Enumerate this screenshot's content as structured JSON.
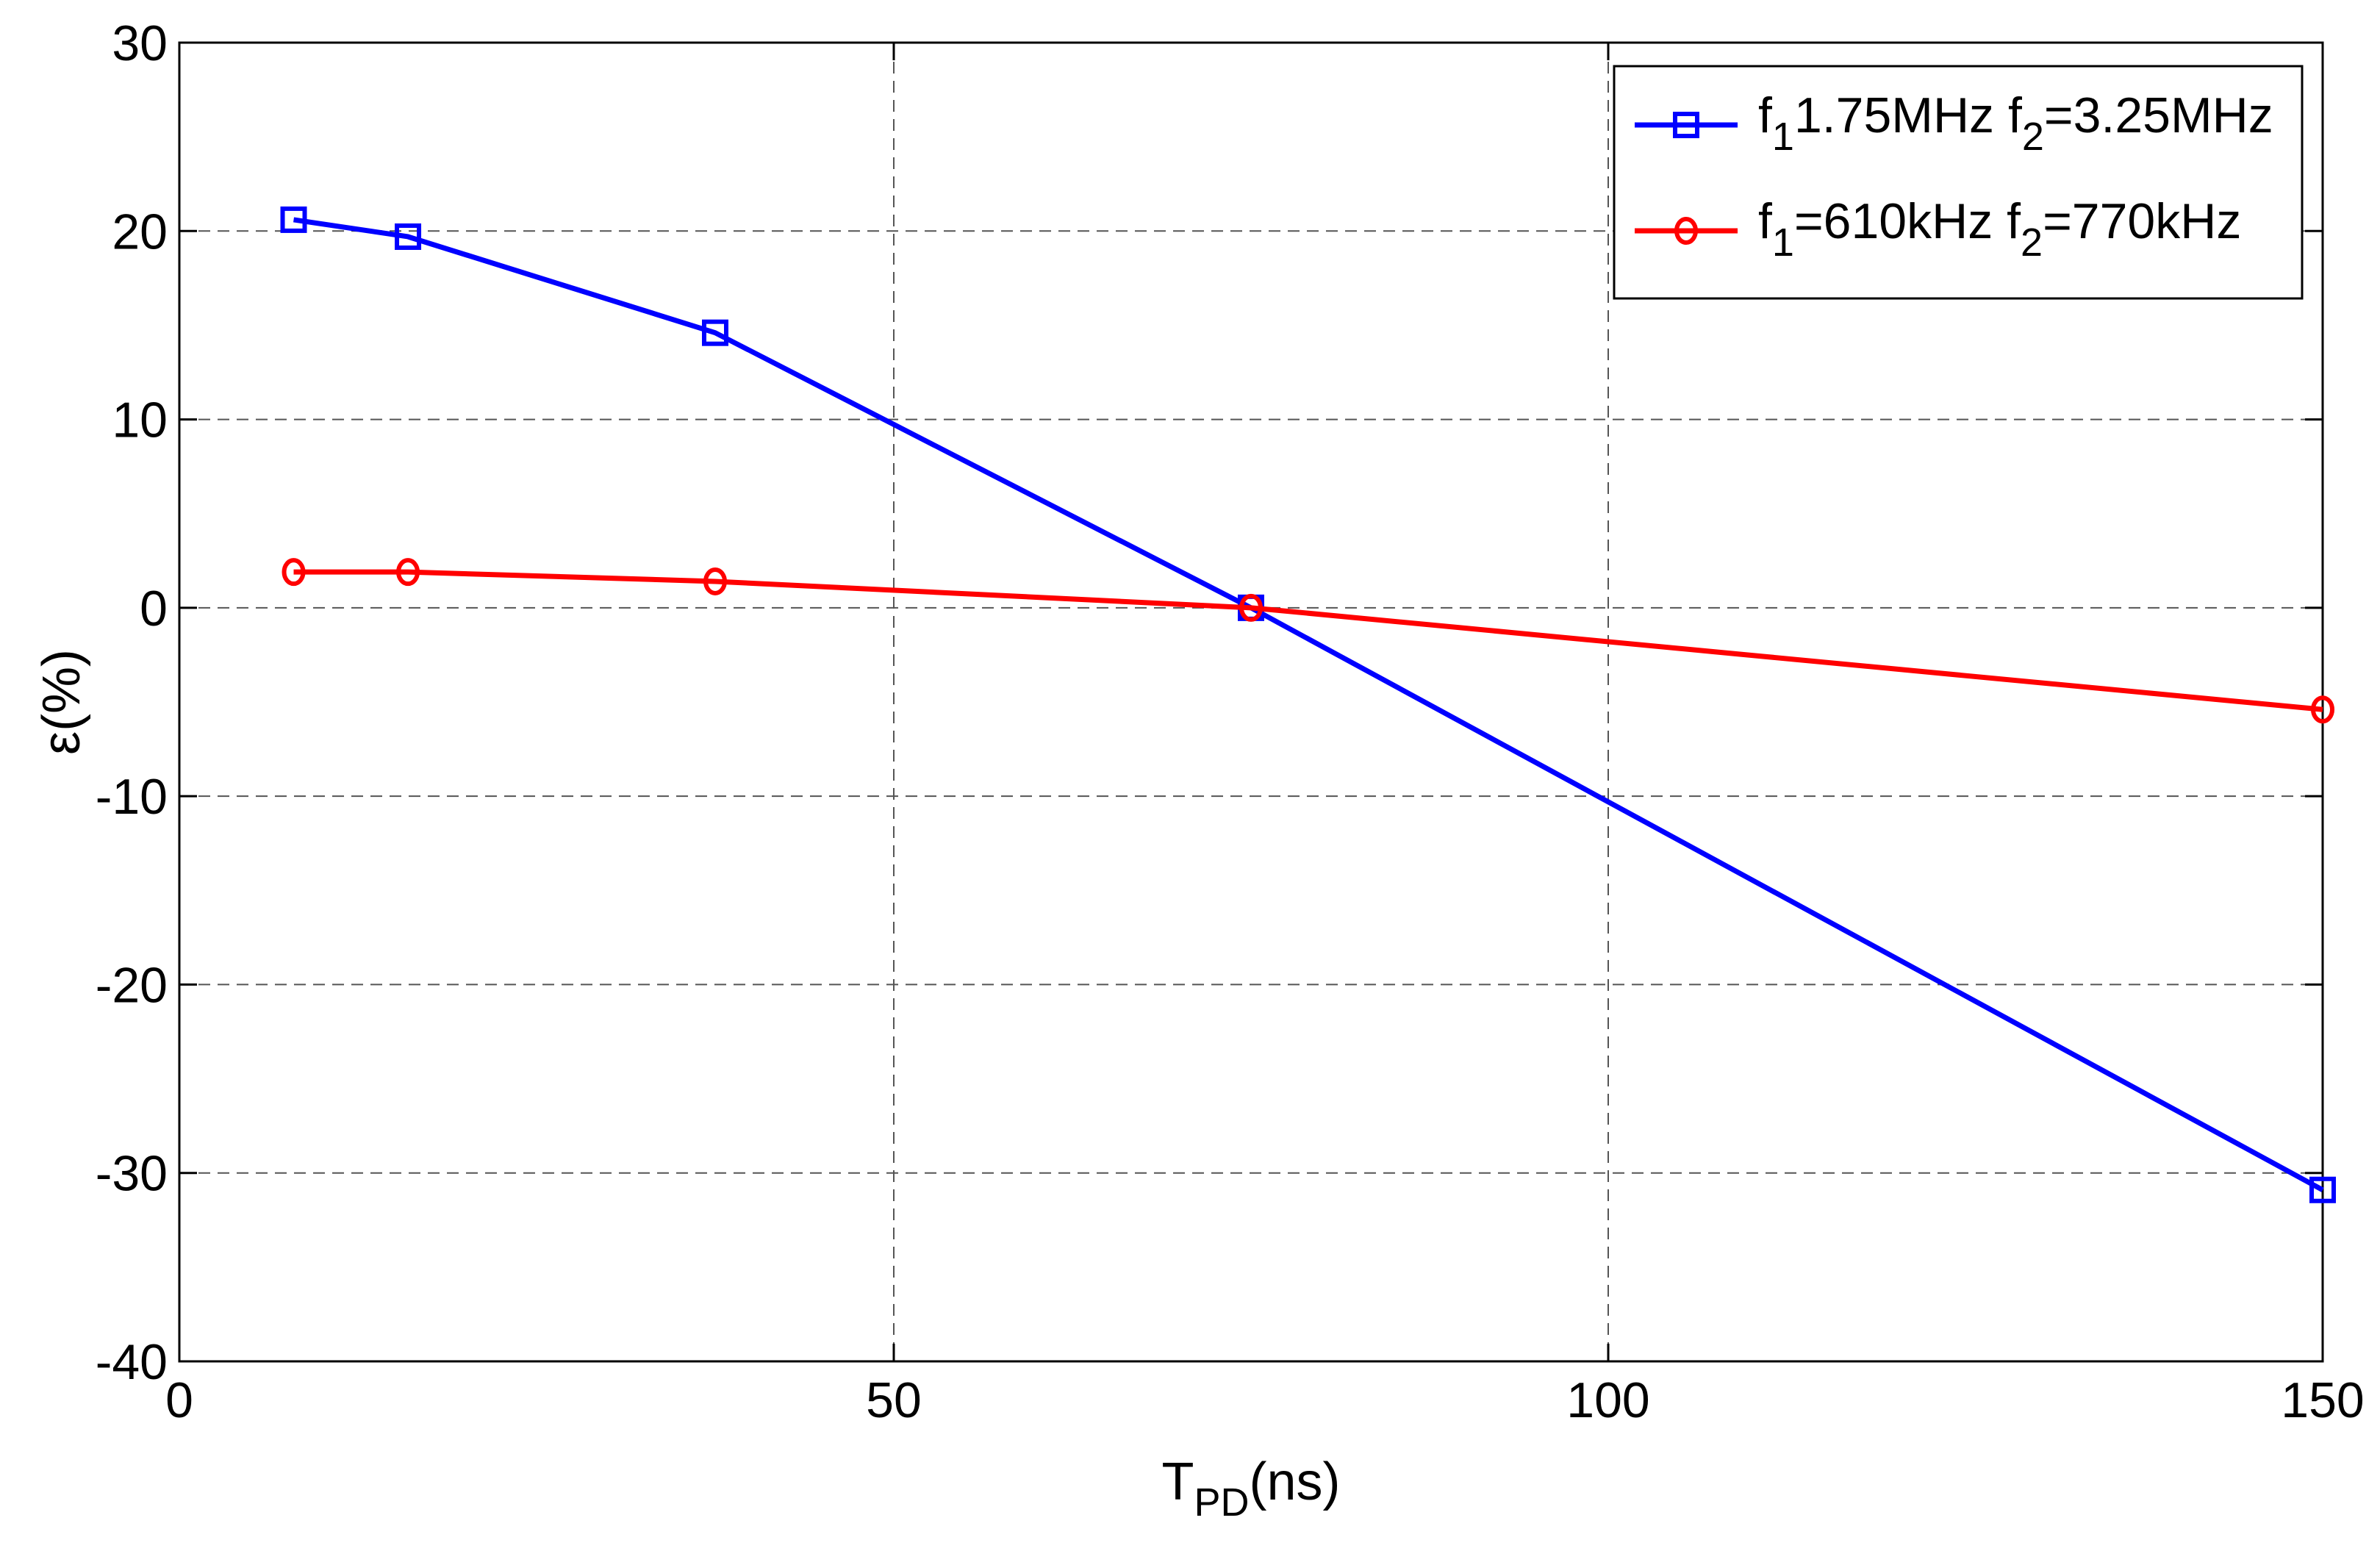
{
  "chart_data": {
    "type": "line",
    "xlabel": {
      "main": "T",
      "sub": "PD",
      "rest": "(ns)"
    },
    "ylabel": "ε(%)",
    "xlim": [
      0,
      150
    ],
    "ylim": [
      -40,
      30
    ],
    "xticks": [
      0,
      50,
      100,
      150
    ],
    "yticks": [
      -40,
      -30,
      -20,
      -10,
      0,
      10,
      20,
      30
    ],
    "grid": true,
    "legend_position": "top-right",
    "series": [
      {
        "name": "f11.75MHz  f2=3.25MHz",
        "legend": {
          "p1": "f",
          "s1": "1",
          "p2": "1.75MHz  f",
          "s2": "2",
          "p3": "=3.25MHz"
        },
        "color": "#0000ff",
        "marker": "square",
        "x": [
          8,
          16,
          37.5,
          75,
          150
        ],
        "y": [
          20.6,
          19.7,
          14.6,
          0,
          -30.9
        ]
      },
      {
        "name": "f1=610kHz  f2=770kHz",
        "legend": {
          "p1": "f",
          "s1": "1",
          "p2": "=610kHz  f",
          "s2": "2",
          "p3": "=770kHz"
        },
        "color": "#ff0000",
        "marker": "circle",
        "x": [
          8,
          16,
          37.5,
          75,
          150
        ],
        "y": [
          1.9,
          1.9,
          1.4,
          0,
          -5.4
        ]
      }
    ]
  }
}
